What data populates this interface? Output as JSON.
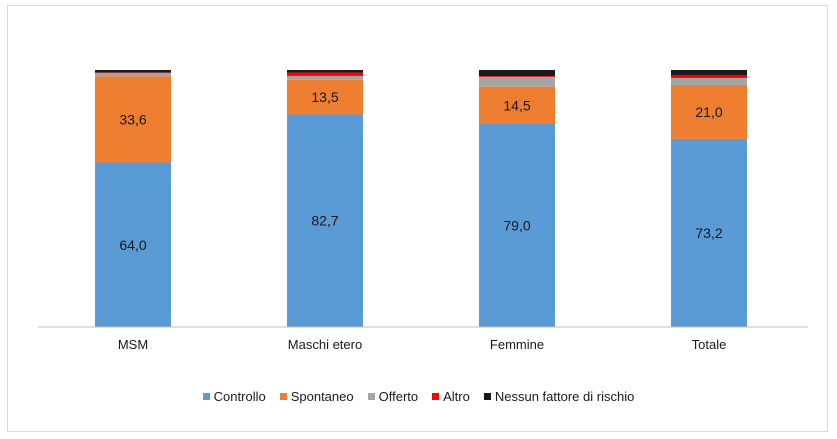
{
  "chart_data": {
    "type": "bar",
    "stacked": true,
    "categories": [
      "MSM",
      "Maschi etero",
      "Femmine",
      "Totale"
    ],
    "series": [
      {
        "name": "Controllo",
        "color": "#5b9bd5",
        "values": [
          64.0,
          82.7,
          79.0,
          73.2
        ],
        "labels": [
          "64,0",
          "82,7",
          "79,0",
          "73,2"
        ]
      },
      {
        "name": "Spontaneo",
        "color": "#ed7d31",
        "values": [
          33.6,
          13.5,
          14.5,
          21.0
        ],
        "labels": [
          "33,6",
          "13,5",
          "14,5",
          "21,0"
        ]
      },
      {
        "name": "Offerto",
        "color": "#a5a5a5",
        "values": [
          1.3,
          1.5,
          3.8,
          2.7
        ],
        "labels": [
          "",
          "",
          "",
          ""
        ]
      },
      {
        "name": "Altro",
        "color": "#ff0000",
        "values": [
          0.1,
          1.3,
          0.3,
          1.0
        ],
        "labels": [
          "",
          "",
          "",
          ""
        ]
      },
      {
        "name": "Nessun fattore di rischio",
        "color": "#1a1a1a",
        "values": [
          1.0,
          1.0,
          2.4,
          2.1
        ],
        "labels": [
          "",
          "",
          "",
          ""
        ]
      }
    ],
    "ylim": [
      0,
      100
    ],
    "grid": false,
    "legend_position": "bottom"
  }
}
